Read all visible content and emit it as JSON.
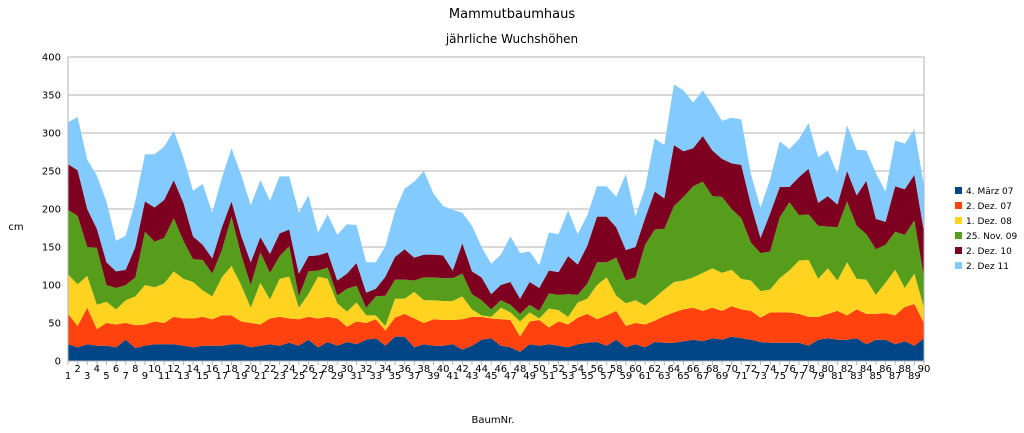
{
  "chart_data": {
    "type": "area",
    "stacked": true,
    "title": "Mammutbaumhaus",
    "subtitle": "jährliche Wuchshöhen",
    "xlabel": "BaumNr.",
    "ylabel": "cm",
    "ylim": [
      0,
      400
    ],
    "yticks": [
      0,
      50,
      100,
      150,
      200,
      250,
      300,
      350,
      400
    ],
    "grid": true,
    "legend": "right",
    "x": [
      1,
      2,
      3,
      4,
      5,
      6,
      7,
      8,
      9,
      10,
      11,
      12,
      13,
      14,
      15,
      16,
      17,
      18,
      19,
      20,
      21,
      22,
      23,
      24,
      25,
      26,
      27,
      28,
      29,
      30,
      31,
      32,
      33,
      34,
      35,
      36,
      37,
      38,
      39,
      40,
      41,
      42,
      43,
      44,
      45,
      46,
      47,
      48,
      49,
      50,
      51,
      52,
      53,
      54,
      55,
      56,
      57,
      58,
      59,
      60,
      61,
      62,
      63,
      64,
      65,
      66,
      67,
      68,
      69,
      70,
      71,
      72,
      73,
      74,
      75,
      76,
      77,
      78,
      79,
      80,
      81,
      82,
      83,
      84,
      85,
      86,
      87,
      88,
      89,
      90
    ],
    "series": [
      {
        "name": "4. März 07",
        "color": "#004586",
        "values": [
          22,
          18,
          22,
          20,
          20,
          18,
          28,
          17,
          20,
          22,
          22,
          22,
          20,
          18,
          20,
          20,
          20,
          22,
          22,
          18,
          20,
          22,
          20,
          24,
          20,
          28,
          18,
          25,
          20,
          25,
          22,
          28,
          30,
          20,
          32,
          32,
          18,
          22,
          20,
          20,
          22,
          15,
          20,
          28,
          30,
          20,
          18,
          12,
          22,
          20,
          22,
          20,
          18,
          22,
          24,
          25,
          20,
          28,
          18,
          22,
          18,
          25,
          24,
          24,
          26,
          28,
          26,
          30,
          28,
          32,
          30,
          28,
          25,
          24,
          24,
          24,
          24,
          20,
          28,
          30,
          28,
          28,
          30,
          22,
          28,
          28,
          22,
          26,
          20,
          30
        ]
      },
      {
        "name": "2. Dez. 07",
        "color": "#ff420e",
        "values": [
          40,
          28,
          48,
          22,
          30,
          30,
          22,
          30,
          28,
          30,
          28,
          36,
          36,
          38,
          38,
          35,
          40,
          38,
          30,
          32,
          28,
          34,
          38,
          32,
          35,
          30,
          38,
          33,
          36,
          20,
          30,
          22,
          25,
          20,
          25,
          30,
          38,
          28,
          35,
          34,
          32,
          40,
          38,
          30,
          26,
          35,
          36,
          20,
          30,
          34,
          22,
          32,
          30,
          35,
          38,
          30,
          40,
          38,
          28,
          28,
          30,
          28,
          35,
          40,
          42,
          42,
          40,
          40,
          38,
          40,
          38,
          38,
          32,
          40,
          40,
          40,
          38,
          38,
          30,
          32,
          38,
          32,
          38,
          40,
          34,
          35,
          38,
          45,
          55,
          20
        ]
      },
      {
        "name": "1. Dez. 08",
        "color": "#ffd320",
        "values": [
          52,
          55,
          42,
          32,
          28,
          20,
          30,
          38,
          52,
          45,
          52,
          60,
          52,
          48,
          35,
          30,
          50,
          65,
          48,
          20,
          55,
          25,
          50,
          55,
          15,
          30,
          55,
          50,
          20,
          20,
          25,
          10,
          5,
          6,
          25,
          20,
          35,
          30,
          25,
          25,
          25,
          30,
          10,
          2,
          2,
          15,
          10,
          20,
          12,
          2,
          25,
          15,
          10,
          20,
          20,
          45,
          50,
          20,
          30,
          30,
          25,
          30,
          35,
          40,
          38,
          40,
          50,
          52,
          50,
          48,
          40,
          40,
          35,
          30,
          45,
          55,
          70,
          75,
          50,
          60,
          40,
          70,
          40,
          45,
          25,
          40,
          60,
          25,
          40,
          20
        ]
      },
      {
        "name": "25. Nov. 09",
        "color": "#579d1c",
        "values": [
          85,
          90,
          38,
          75,
          22,
          28,
          20,
          25,
          70,
          60,
          60,
          70,
          50,
          30,
          40,
          30,
          36,
          65,
          40,
          30,
          40,
          35,
          30,
          40,
          15,
          30,
          8,
          15,
          10,
          30,
          22,
          10,
          25,
          40,
          25,
          25,
          15,
          30,
          30,
          30,
          30,
          30,
          20,
          20,
          10,
          10,
          10,
          10,
          10,
          10,
          20,
          20,
          30,
          10,
          20,
          30,
          20,
          50,
          30,
          30,
          80,
          90,
          80,
          100,
          110,
          120,
          120,
          95,
          100,
          80,
          80,
          50,
          50,
          50,
          80,
          90,
          60,
          60,
          70,
          55,
          70,
          80,
          70,
          60,
          60,
          50,
          50,
          70,
          70,
          40
        ]
      },
      {
        "name": "2. Dez. 10",
        "color": "#7e0021",
        "values": [
          60,
          60,
          50,
          25,
          30,
          22,
          20,
          40,
          40,
          45,
          50,
          50,
          50,
          30,
          20,
          20,
          30,
          20,
          25,
          30,
          20,
          25,
          30,
          22,
          30,
          20,
          20,
          20,
          20,
          20,
          30,
          20,
          10,
          25,
          30,
          40,
          30,
          30,
          30,
          30,
          10,
          40,
          30,
          30,
          20,
          20,
          30,
          20,
          30,
          30,
          30,
          30,
          50,
          40,
          50,
          60,
          60,
          40,
          40,
          40,
          35,
          50,
          40,
          80,
          60,
          50,
          60,
          60,
          50,
          60,
          70,
          50,
          20,
          50,
          40,
          20,
          50,
          60,
          30,
          40,
          30,
          40,
          40,
          70,
          40,
          30,
          60,
          60,
          60,
          60
        ]
      },
      {
        "name": "2. Dez 11",
        "color": "#83caff",
        "values": [
          55,
          70,
          65,
          70,
          80,
          40,
          45,
          60,
          62,
          70,
          70,
          65,
          60,
          60,
          80,
          60,
          65,
          70,
          80,
          75,
          75,
          70,
          75,
          70,
          80,
          80,
          30,
          50,
          60,
          65,
          50,
          40,
          35,
          40,
          60,
          80,
          100,
          110,
          80,
          65,
          80,
          40,
          60,
          40,
          40,
          40,
          60,
          60,
          40,
          30,
          50,
          50,
          60,
          40,
          40,
          40,
          40,
          40,
          100,
          40,
          40,
          70,
          70,
          80,
          80,
          60,
          60,
          60,
          50,
          60,
          60,
          40,
          40,
          45,
          60,
          50,
          50,
          60,
          60,
          60,
          40,
          60,
          60,
          40,
          60,
          40,
          60,
          60,
          60,
          60
        ]
      }
    ]
  }
}
